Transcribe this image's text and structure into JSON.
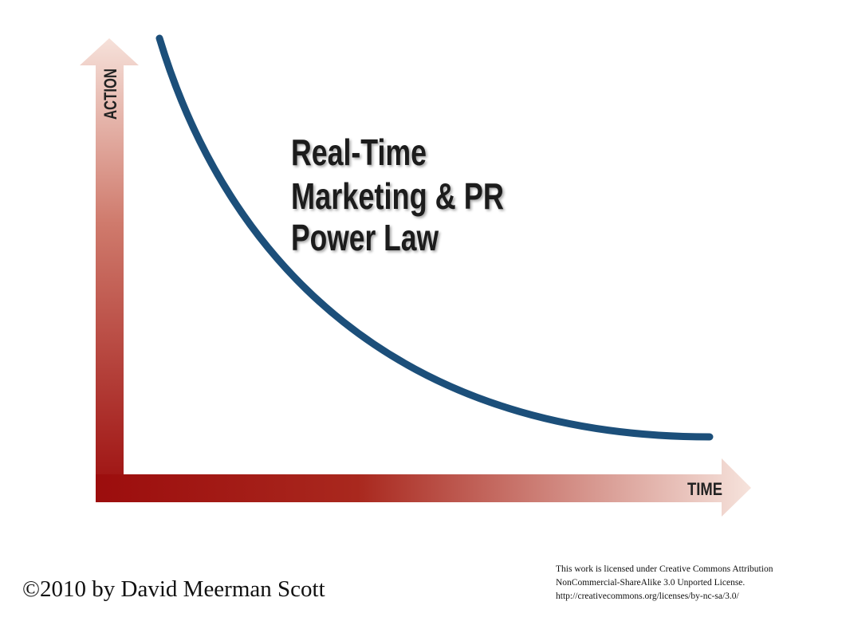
{
  "title": [
    "Real-Time",
    "Marketing & PR",
    "Power Law"
  ],
  "axes": {
    "y_label": "ACTION",
    "x_label": "TIME"
  },
  "copyright": "©2010 by David Meerman Scott",
  "license": [
    "This work is licensed under Creative Commons Attribution",
    "NonCommercial-ShareAlike 3.0 Unported License.",
    "http://creativecommons.org/licenses/by-nc-sa/3.0/"
  ]
}
